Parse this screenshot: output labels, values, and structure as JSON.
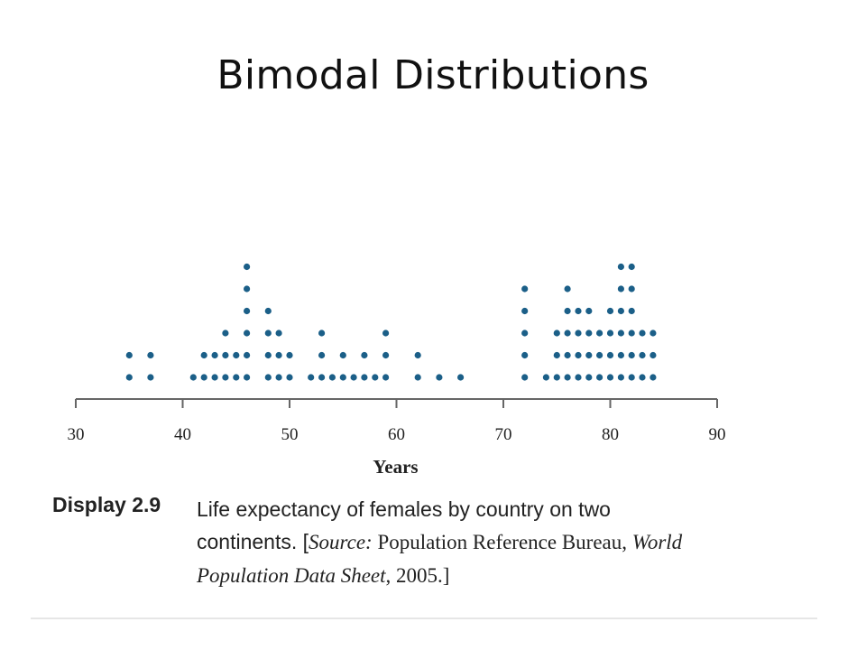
{
  "slide": {
    "title": "Bimodal Distributions"
  },
  "caption": {
    "tag": "Display 2.9",
    "line1": "Life expectancy of females by country on two",
    "line2_plain": "continents. [",
    "line2_source_label": "Source:",
    "line2_rest": " Population Reference Bureau, ",
    "line2_italic": "World",
    "line3_italic": "Population Data Sheet",
    "line3_rest": ", 2005.]"
  },
  "colors": {
    "dot": "#1b5f88",
    "axis": "#666666"
  },
  "chart_data": {
    "type": "scatter",
    "subtype": "dot plot",
    "title": "",
    "xlabel": "Years",
    "ylabel": "",
    "xlim": [
      30,
      90
    ],
    "xticks": [
      30,
      40,
      50,
      60,
      70,
      80,
      90
    ],
    "xtick_labels": [
      "30",
      "40",
      "50",
      "60",
      "70",
      "80",
      "90"
    ],
    "grid": false,
    "legend": "none",
    "series": [
      {
        "values": [
          35,
          35,
          37,
          37,
          41,
          42,
          42,
          43,
          43,
          44,
          44,
          44,
          45,
          45,
          46,
          46,
          46,
          46,
          46,
          46,
          48,
          48,
          48,
          48,
          49,
          49,
          49,
          50,
          50,
          52,
          53,
          53,
          53,
          54,
          55,
          55,
          56,
          57,
          57,
          58,
          59,
          59,
          59,
          62,
          62,
          64,
          66,
          72,
          72,
          72,
          72,
          72,
          74,
          75,
          75,
          75,
          76,
          76,
          76,
          76,
          76,
          77,
          77,
          77,
          77,
          78,
          78,
          78,
          78,
          79,
          79,
          79,
          80,
          80,
          80,
          80,
          81,
          81,
          81,
          81,
          81,
          81,
          82,
          82,
          82,
          82,
          82,
          82,
          83,
          83,
          83,
          84,
          84,
          84
        ]
      }
    ]
  }
}
